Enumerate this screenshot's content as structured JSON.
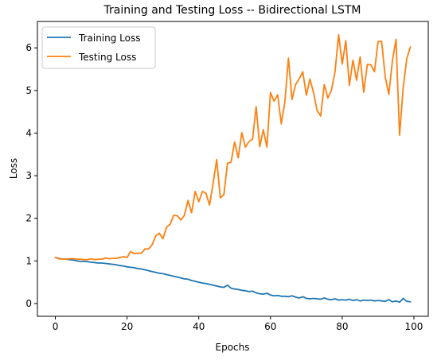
{
  "chart_data": {
    "type": "line",
    "title": "Training and Testing Loss -- Bidirectional LSTM",
    "xlabel": "Epochs",
    "ylabel": "Loss",
    "xlim": [
      -5,
      104
    ],
    "ylim": [
      -0.3,
      6.62
    ],
    "xticks": [
      0,
      20,
      40,
      60,
      80,
      100
    ],
    "yticks": [
      0,
      1,
      2,
      3,
      4,
      5,
      6
    ],
    "grid": false,
    "legend_position": "top-left",
    "x": [
      0,
      1,
      2,
      3,
      4,
      5,
      6,
      7,
      8,
      9,
      10,
      11,
      12,
      13,
      14,
      15,
      16,
      17,
      18,
      19,
      20,
      21,
      22,
      23,
      24,
      25,
      26,
      27,
      28,
      29,
      30,
      31,
      32,
      33,
      34,
      35,
      36,
      37,
      38,
      39,
      40,
      41,
      42,
      43,
      44,
      45,
      46,
      47,
      48,
      49,
      50,
      51,
      52,
      53,
      54,
      55,
      56,
      57,
      58,
      59,
      60,
      61,
      62,
      63,
      64,
      65,
      66,
      67,
      68,
      69,
      70,
      71,
      72,
      73,
      74,
      75,
      76,
      77,
      78,
      79,
      80,
      81,
      82,
      83,
      84,
      85,
      86,
      87,
      88,
      89,
      90,
      91,
      92,
      93,
      94,
      95,
      96,
      97,
      98,
      99
    ],
    "series": [
      {
        "name": "Training Loss",
        "color": "#1f77b4",
        "values": [
          1.08,
          1.06,
          1.04,
          1.04,
          1.03,
          1.02,
          1.0,
          0.99,
          0.99,
          0.98,
          0.97,
          0.96,
          0.95,
          0.95,
          0.94,
          0.93,
          0.92,
          0.91,
          0.89,
          0.88,
          0.86,
          0.85,
          0.84,
          0.82,
          0.81,
          0.79,
          0.77,
          0.75,
          0.73,
          0.71,
          0.7,
          0.68,
          0.66,
          0.64,
          0.62,
          0.6,
          0.58,
          0.57,
          0.54,
          0.52,
          0.5,
          0.48,
          0.47,
          0.45,
          0.43,
          0.41,
          0.39,
          0.38,
          0.43,
          0.36,
          0.34,
          0.33,
          0.31,
          0.3,
          0.28,
          0.29,
          0.25,
          0.23,
          0.22,
          0.24,
          0.2,
          0.18,
          0.19,
          0.17,
          0.17,
          0.16,
          0.18,
          0.15,
          0.13,
          0.16,
          0.12,
          0.11,
          0.12,
          0.11,
          0.1,
          0.13,
          0.1,
          0.09,
          0.11,
          0.08,
          0.09,
          0.08,
          0.1,
          0.07,
          0.09,
          0.06,
          0.08,
          0.07,
          0.08,
          0.06,
          0.07,
          0.06,
          0.05,
          0.09,
          0.04,
          0.06,
          0.03,
          0.12,
          0.05,
          0.04
        ]
      },
      {
        "name": "Testing Loss",
        "color": "#ff7f0e",
        "values": [
          1.08,
          1.05,
          1.04,
          1.04,
          1.05,
          1.05,
          1.04,
          1.04,
          1.03,
          1.03,
          1.05,
          1.03,
          1.04,
          1.04,
          1.07,
          1.05,
          1.06,
          1.06,
          1.08,
          1.1,
          1.08,
          1.22,
          1.17,
          1.18,
          1.18,
          1.28,
          1.28,
          1.38,
          1.59,
          1.65,
          1.52,
          1.79,
          1.86,
          2.07,
          2.06,
          1.96,
          2.07,
          2.42,
          2.13,
          2.63,
          2.39,
          2.63,
          2.59,
          2.31,
          2.82,
          3.38,
          2.48,
          2.55,
          3.29,
          3.32,
          3.79,
          3.42,
          4.01,
          3.67,
          3.8,
          3.86,
          4.62,
          3.68,
          4.08,
          3.67,
          4.95,
          4.75,
          4.9,
          4.22,
          4.72,
          5.76,
          4.79,
          5.14,
          5.27,
          5.44,
          4.89,
          5.27,
          4.95,
          4.53,
          4.4,
          5.14,
          4.82,
          5.01,
          5.44,
          6.31,
          5.62,
          6.17,
          5.12,
          5.71,
          5.24,
          5.79,
          4.96,
          5.61,
          5.6,
          5.44,
          6.15,
          6.15,
          5.32,
          4.91,
          5.69,
          6.2,
          3.95,
          5.06,
          5.74,
          6.02
        ]
      }
    ]
  }
}
